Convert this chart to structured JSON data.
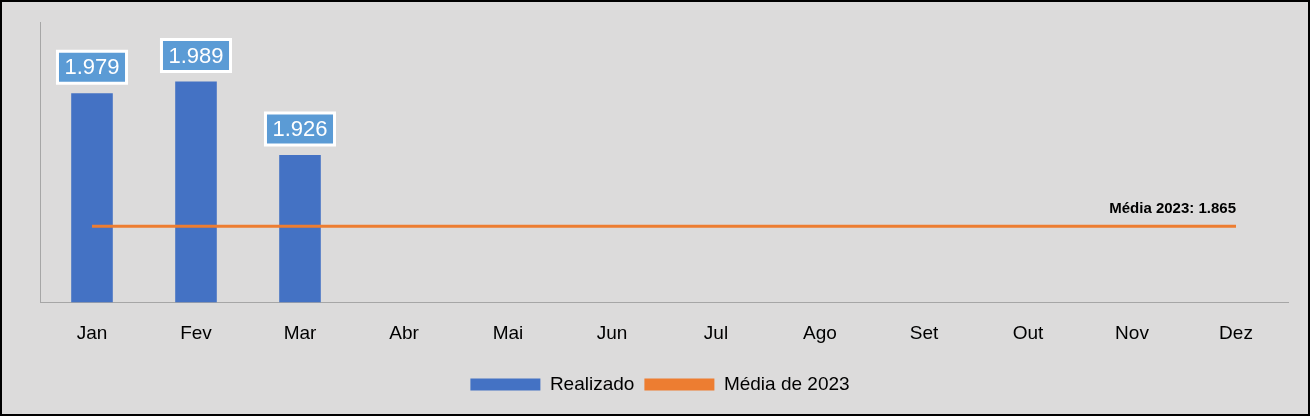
{
  "chart_data": {
    "type": "bar",
    "categories": [
      "Jan",
      "Fev",
      "Mar",
      "Abr",
      "Mai",
      "Jun",
      "Jul",
      "Ago",
      "Set",
      "Out",
      "Nov",
      "Dez"
    ],
    "series": [
      {
        "name": "Realizado",
        "color": "#4472c4",
        "values": [
          1979,
          1989,
          1926,
          null,
          null,
          null,
          null,
          null,
          null,
          null,
          null,
          null
        ],
        "value_labels": [
          "1.979",
          "1.989",
          "1.926",
          null,
          null,
          null,
          null,
          null,
          null,
          null,
          null,
          null
        ]
      },
      {
        "name": "Média de 2023",
        "type": "line",
        "color": "#ed7d31",
        "marker": "none",
        "values": [
          1865,
          1865,
          1865,
          1865,
          1865,
          1865,
          1865,
          1865,
          1865,
          1865,
          1865,
          1865
        ]
      }
    ],
    "annotations": [
      {
        "text": "Média 2023: 1.865",
        "x": "Dez",
        "y": 1865
      }
    ],
    "ylim": [
      1800,
      2040
    ],
    "tick_labels": "x",
    "grid": false,
    "legend": "bottom"
  }
}
